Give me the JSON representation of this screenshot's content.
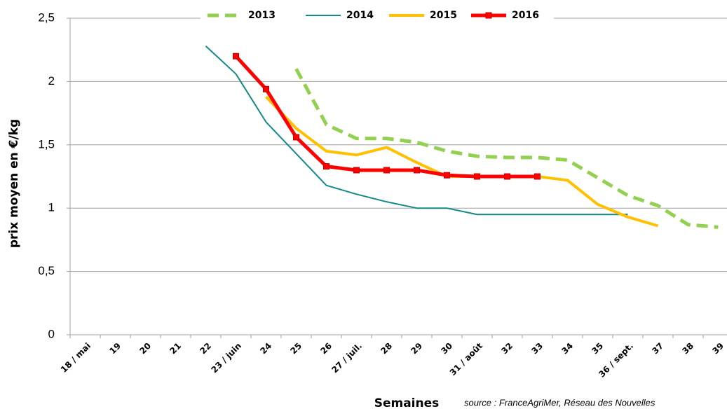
{
  "chart_data": {
    "type": "line",
    "y_label": "prix moyen en €/kg",
    "x_label": "Semaines",
    "source": "source : FranceAgriMer, Réseau des Nouvelles",
    "categories": [
      "18 / mai",
      "19",
      "20",
      "21",
      "22",
      "23 / juin",
      "24",
      "25",
      "26",
      "27 / juil.",
      "28",
      "29",
      "30",
      "31 / août",
      "32",
      "33",
      "34",
      "35",
      "36 / sept.",
      "37",
      "38",
      "39"
    ],
    "ylim": [
      0,
      2.5
    ],
    "yticks": [
      0,
      {
        "value": 0.5,
        "label": "0,5"
      },
      1,
      {
        "value": 1.5,
        "label": "1,5"
      },
      2,
      {
        "value": 2.5,
        "label": "2,5"
      }
    ],
    "grid": true,
    "series": [
      {
        "name": "2013",
        "color": "#92d050",
        "dashed": true,
        "values": [
          null,
          null,
          null,
          null,
          null,
          null,
          null,
          2.1,
          1.66,
          1.55,
          1.55,
          1.52,
          1.45,
          1.41,
          1.4,
          1.4,
          1.38,
          1.24,
          1.1,
          1.02,
          0.87,
          0.85
        ]
      },
      {
        "name": "2014",
        "color": "#138a86",
        "values": [
          null,
          null,
          null,
          null,
          2.28,
          2.06,
          1.68,
          1.43,
          1.18,
          1.11,
          1.05,
          1.0,
          1.0,
          0.95,
          0.95,
          0.95,
          0.95,
          0.95,
          0.95,
          null,
          null,
          null
        ]
      },
      {
        "name": "2015",
        "color": "#ffc000",
        "values": [
          null,
          null,
          null,
          null,
          null,
          null,
          1.88,
          1.63,
          1.45,
          1.42,
          1.48,
          1.36,
          1.25,
          1.25,
          1.25,
          1.25,
          1.22,
          1.03,
          0.93,
          0.86,
          null,
          null
        ]
      },
      {
        "name": "2016",
        "color": "#ff0000",
        "marker": "square",
        "values": [
          null,
          null,
          null,
          null,
          null,
          2.2,
          1.94,
          1.56,
          1.33,
          1.3,
          1.3,
          1.3,
          1.26,
          1.25,
          1.25,
          1.25,
          null,
          null,
          null,
          null,
          null,
          null
        ]
      }
    ]
  }
}
